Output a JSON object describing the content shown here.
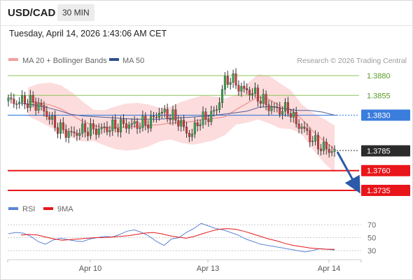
{
  "header": {
    "symbol": "USD/CAD",
    "interval": "30 MIN",
    "timestamp": "Tuesday, April 14, 2026 1:43:06 AM CET"
  },
  "legend": {
    "ma20": "MA 20 + Bollinger Bands",
    "ma50": "MA 50",
    "credit": "Research © 2026 Trading Central",
    "rsi": "RSI",
    "ma9": "9MA"
  },
  "colors": {
    "bollinger": "#f08080",
    "ma50": "#2f4f8f",
    "current_level": "#3b7ddd",
    "support": "#e8161a",
    "resistance": "#8fc45a",
    "projection_arrow": "#2a5aa8",
    "rsi": "#5b84d6",
    "rsi_ma": "#e8161a"
  },
  "chart_data": [
    {
      "type": "line",
      "title": "USD/CAD 30 MIN",
      "x_ticks": [
        "Apr 10",
        "Apr 13",
        "Apr 14"
      ],
      "levels": [
        {
          "value": 1.388,
          "label": "1.3880",
          "kind": "resistance"
        },
        {
          "value": 1.3855,
          "label": "1.3855",
          "kind": "resistance"
        },
        {
          "value": 1.383,
          "label": "1.3830",
          "kind": "pivot"
        },
        {
          "value": 1.3785,
          "label": "1.3785",
          "kind": "last_price"
        },
        {
          "value": 1.376,
          "label": "1.3760",
          "kind": "support"
        },
        {
          "value": 1.3735,
          "label": "1.3735",
          "kind": "support"
        }
      ],
      "series": [
        {
          "name": "USD/CAD",
          "values": [
            1.3848,
            1.3846,
            1.3848,
            1.3847,
            1.3845,
            1.384,
            1.383,
            1.3818,
            1.3812,
            1.3808,
            1.3806,
            1.381,
            1.3812,
            1.3811,
            1.3812,
            1.3813,
            1.3815,
            1.3817,
            1.3818,
            1.3818,
            1.3818,
            1.382,
            1.3823,
            1.3834,
            1.3832,
            1.3828,
            1.3824,
            1.3812,
            1.3803,
            1.3822,
            1.3825,
            1.383,
            1.3838,
            1.387,
            1.3877,
            1.3868,
            1.3862,
            1.386,
            1.3855,
            1.3848,
            1.384,
            1.3838,
            1.3836,
            1.3838,
            1.382,
            1.3815,
            1.3805,
            1.3795,
            1.379,
            1.3786,
            1.3785
          ]
        },
        {
          "name": "MA 20 + Bollinger Bands",
          "values": [
            1.3847,
            1.3846,
            1.3843,
            1.3838,
            1.383,
            1.3822,
            1.3817,
            1.3814,
            1.3814,
            1.3815,
            1.3816,
            1.3817,
            1.3818,
            1.382,
            1.3821,
            1.3822,
            1.3825,
            1.3826,
            1.3828,
            1.3837,
            1.3845,
            1.3853,
            1.385,
            1.3842,
            1.3837,
            1.3825,
            1.381,
            1.3798,
            1.3787
          ]
        },
        {
          "name": "MA 50",
          "values": [
            1.3845,
            1.3843,
            1.384,
            1.3836,
            1.3831,
            1.3829,
            1.3828,
            1.3827,
            1.3826,
            1.3825,
            1.3825,
            1.3825,
            1.3826,
            1.3827,
            1.3828,
            1.3829,
            1.3831,
            1.3833,
            1.3835,
            1.384,
            1.3841,
            1.3838,
            1.3836,
            1.3836,
            1.3834,
            1.383
          ]
        }
      ],
      "last_value": 1.3785
    },
    {
      "type": "line",
      "title": "RSI",
      "ylim": [
        20,
        80
      ],
      "y_ticks": [
        70,
        50,
        30
      ],
      "series": [
        {
          "name": "RSI",
          "values": [
            56,
            58,
            57,
            52,
            44,
            40,
            46,
            49,
            47,
            45,
            44,
            48,
            50,
            52,
            51,
            55,
            60,
            62,
            58,
            52,
            44,
            38,
            48,
            50,
            58,
            64,
            72,
            68,
            64,
            62,
            58,
            54,
            48,
            44,
            40,
            38,
            36,
            34,
            32,
            30,
            28,
            30,
            33,
            32,
            31
          ]
        },
        {
          "name": "9MA",
          "values": [
            54,
            55,
            54,
            51,
            48,
            46,
            47,
            48,
            49,
            50,
            50,
            51,
            52,
            53,
            55,
            57,
            58,
            56,
            53,
            51,
            49,
            52,
            56,
            60,
            63,
            64,
            63,
            60,
            56,
            52,
            48,
            45,
            41,
            38,
            36,
            34,
            33,
            32,
            32
          ]
        }
      ]
    }
  ]
}
